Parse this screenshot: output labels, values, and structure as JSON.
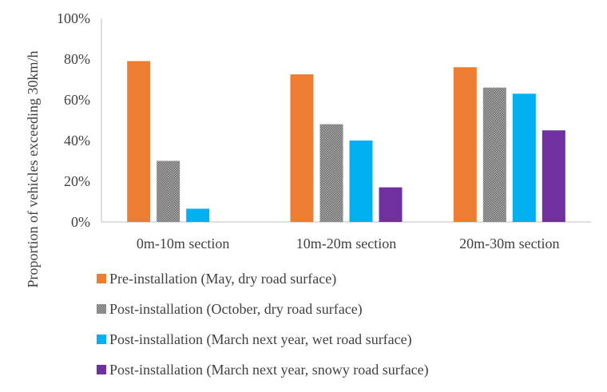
{
  "chart_data": {
    "type": "bar",
    "categories": [
      "0m-10m section",
      "10m-20m section",
      "20m-30m section"
    ],
    "series": [
      {
        "name": "Pre-installation (May, dry road surface)",
        "color": "#ED7D31",
        "pattern": "solid",
        "values": [
          79,
          72.5,
          76
        ]
      },
      {
        "name": "Post-installation (October, dry road surface)",
        "color": "#7F7F7F",
        "pattern": "dotted-gray",
        "values": [
          30,
          48,
          66
        ]
      },
      {
        "name": "Post-installation (March next year, wet road surface)",
        "color": "#00B0F0",
        "pattern": "solid",
        "values": [
          6.5,
          40,
          63
        ]
      },
      {
        "name": "Post-installation (March next year, snowy road surface)",
        "color": "#7030A0",
        "pattern": "solid",
        "values": [
          null,
          17,
          45
        ]
      }
    ],
    "ylabel": "Proportion of vehicles exceeding 30km/h",
    "xlabel": "",
    "ylim": [
      0,
      100
    ],
    "yticks": [
      "0%",
      "20%",
      "40%",
      "60%",
      "80%",
      "100%"
    ],
    "legend_position": "bottom",
    "grid": false
  }
}
